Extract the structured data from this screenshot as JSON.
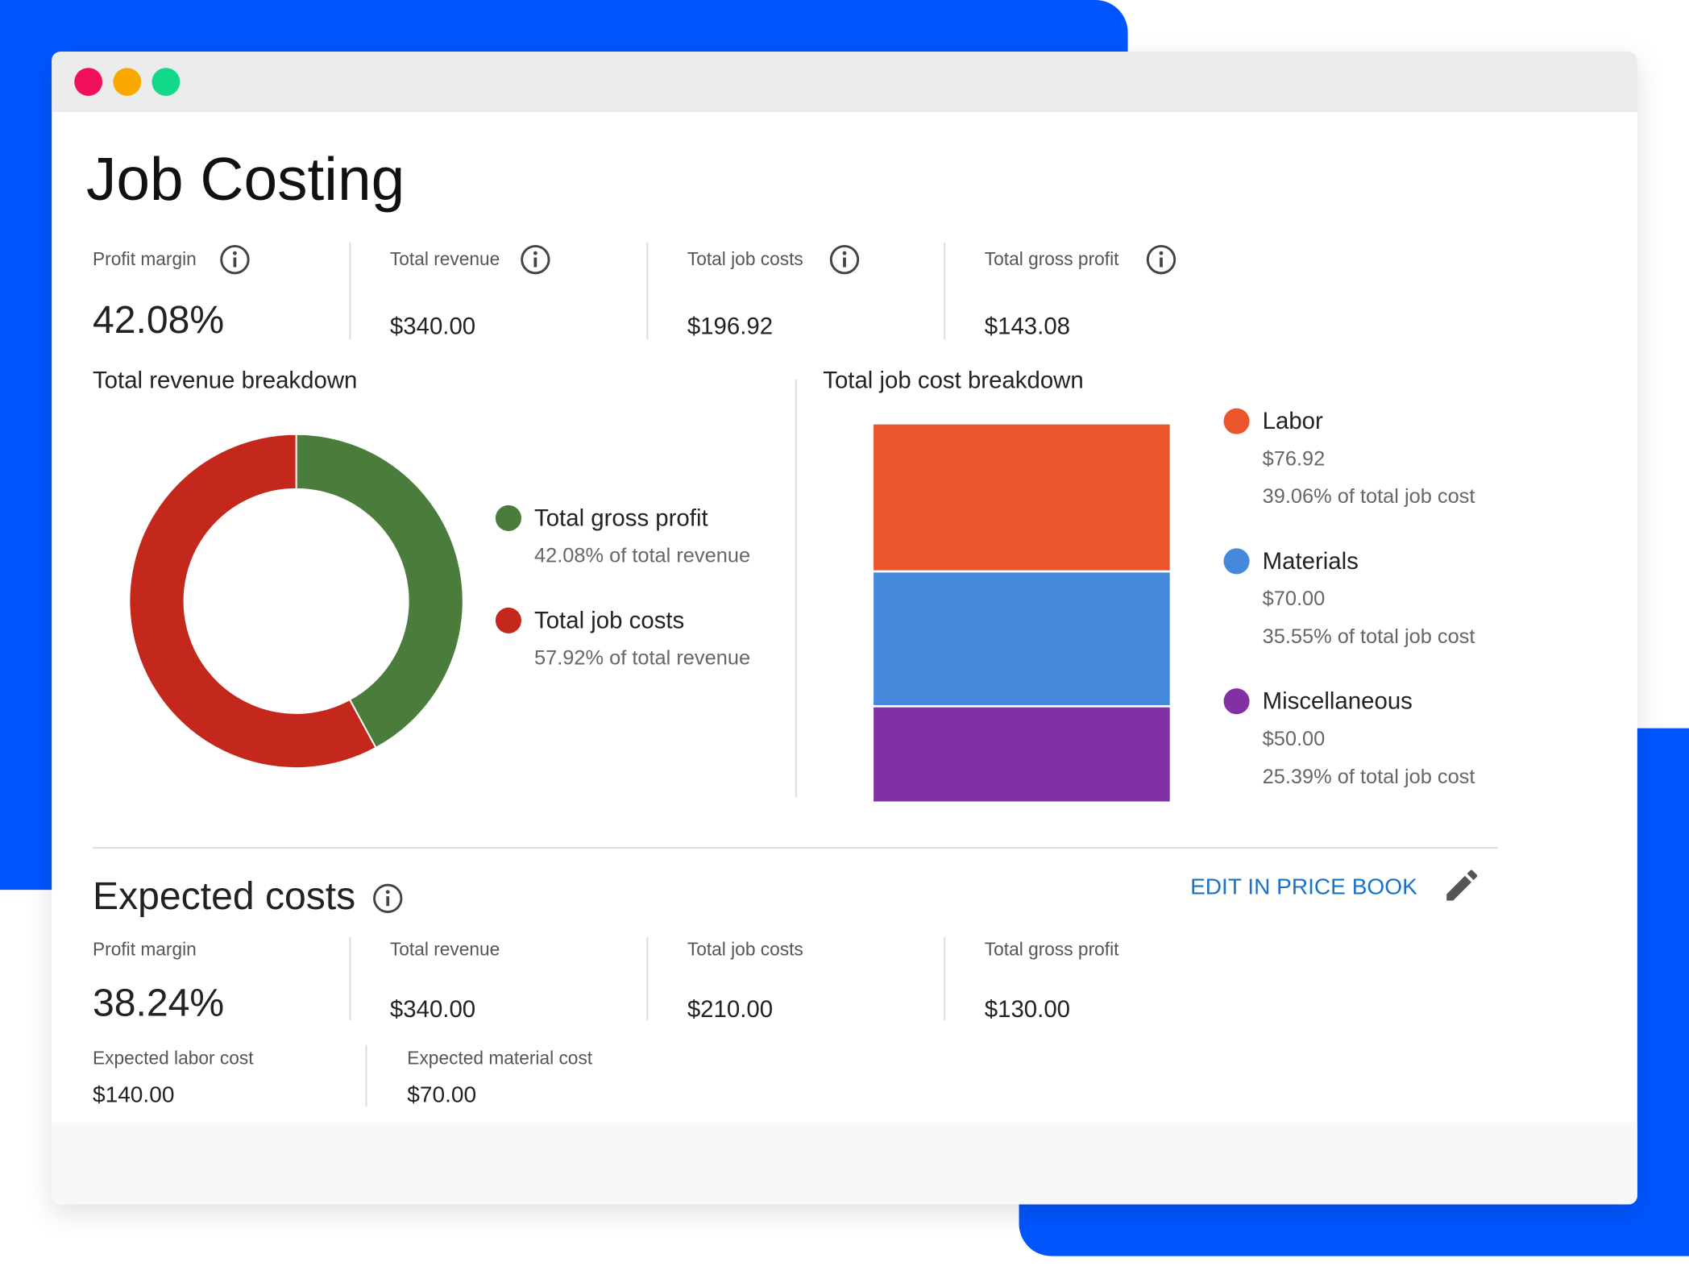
{
  "title": "Job Costing",
  "metrics": [
    {
      "label": "Profit margin",
      "value": "42.08%"
    },
    {
      "label": "Total revenue",
      "value": "$340.00"
    },
    {
      "label": "Total job costs",
      "value": "$196.92"
    },
    {
      "label": "Total gross profit",
      "value": "$143.08"
    }
  ],
  "chart_data": [
    {
      "type": "donut",
      "title": "Total revenue breakdown",
      "categories": [
        "Total gross profit",
        "Total job costs"
      ],
      "values": [
        42.08,
        57.92
      ],
      "value_labels": [
        "42.08% of total revenue",
        "57.92% of total revenue"
      ],
      "colors": [
        "#4a7d3b",
        "#c4281c"
      ]
    },
    {
      "type": "stacked_bar",
      "title": "Total job cost breakdown",
      "categories": [
        "Labor",
        "Materials",
        "Miscellaneous"
      ],
      "values": [
        76.92,
        70,
        50
      ],
      "value_labels": [
        "$76.92",
        "$70.00",
        "$50.00"
      ],
      "share_labels": [
        "39.06% of total job cost",
        "35.55% of total job cost",
        "25.39% of total job cost"
      ],
      "colors": [
        "#ea552b",
        "#4589dd",
        "#8231a5"
      ]
    }
  ],
  "expected": {
    "title": "Expected costs",
    "action": "EDIT IN PRICE BOOK",
    "metrics": [
      {
        "label": "Profit margin",
        "value": "38.24%"
      },
      {
        "label": "Total revenue",
        "value": "$340.00"
      },
      {
        "label": "Total job costs",
        "value": "$210.00"
      },
      {
        "label": "Total gross profit",
        "value": "$130.00"
      }
    ],
    "details": [
      {
        "label": "Expected labor cost",
        "value": "$140.00"
      },
      {
        "label": "Expected material cost",
        "value": "$70.00"
      }
    ]
  }
}
